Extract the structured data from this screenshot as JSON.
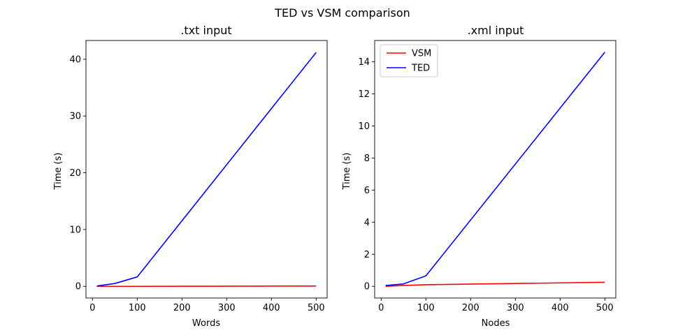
{
  "figure_title": "TED vs VSM comparison",
  "chart_data": [
    {
      "type": "line",
      "title": ".txt input",
      "xlabel": "Words",
      "ylabel": "Time (s)",
      "x": [
        10,
        50,
        100,
        500
      ],
      "xlim": [
        -14.5,
        524.5
      ],
      "ylim": [
        -2.06,
        43.3
      ],
      "xticks": [
        0,
        100,
        200,
        300,
        400,
        500
      ],
      "yticks": [
        0,
        10,
        20,
        30,
        40
      ],
      "grid": false,
      "legend": null,
      "series": [
        {
          "name": "VSM",
          "color": "#ff0000",
          "values": [
            0.0,
            0.0,
            0.0,
            0.05
          ]
        },
        {
          "name": "TED",
          "color": "#0000ff",
          "values": [
            0.05,
            0.5,
            1.65,
            41.2
          ]
        }
      ]
    },
    {
      "type": "line",
      "title": ".xml input",
      "xlabel": "Nodes",
      "ylabel": "Time (s)",
      "x": [
        10,
        50,
        100,
        500
      ],
      "xlim": [
        -14.5,
        524.5
      ],
      "ylim": [
        -0.73,
        15.33
      ],
      "xticks": [
        0,
        100,
        200,
        300,
        400,
        500
      ],
      "yticks": [
        0,
        2,
        4,
        6,
        8,
        10,
        12,
        14
      ],
      "grid": false,
      "legend": "top-left",
      "series": [
        {
          "name": "VSM",
          "color": "#ff0000",
          "values": [
            0.0,
            0.05,
            0.1,
            0.25
          ]
        },
        {
          "name": "TED",
          "color": "#0000ff",
          "values": [
            0.05,
            0.15,
            0.65,
            14.6
          ]
        }
      ]
    }
  ]
}
